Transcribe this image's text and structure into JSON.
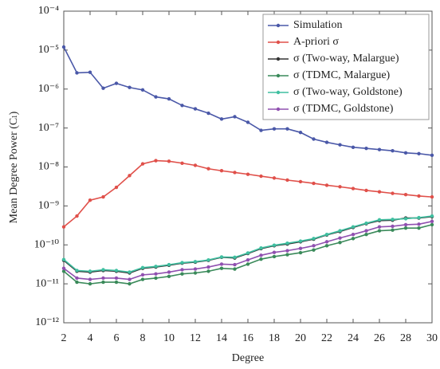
{
  "chart_data": {
    "type": "line",
    "x_label": "Degree",
    "y_label": "Mean Degree Power (Cₗ)",
    "x": [
      2,
      3,
      4,
      5,
      6,
      7,
      8,
      9,
      10,
      11,
      12,
      13,
      14,
      15,
      16,
      17,
      18,
      19,
      20,
      21,
      22,
      23,
      24,
      25,
      26,
      27,
      28,
      29,
      30
    ],
    "xlim": [
      2,
      30
    ],
    "xticks": [
      2,
      4,
      6,
      8,
      10,
      12,
      14,
      16,
      18,
      20,
      22,
      24,
      26,
      28,
      30
    ],
    "ylim": [
      1e-12,
      0.0001
    ],
    "yscale": "log",
    "yticks": [
      {
        "value": 1e-12,
        "label": "10⁻¹²"
      },
      {
        "value": 1e-11,
        "label": "10⁻¹¹"
      },
      {
        "value": 1e-10,
        "label": "10⁻¹⁰"
      },
      {
        "value": 1e-09,
        "label": "10⁻⁹"
      },
      {
        "value": 1e-08,
        "label": "10⁻⁸"
      },
      {
        "value": 1e-07,
        "label": "10⁻⁷"
      },
      {
        "value": 1e-06,
        "label": "10⁻⁶"
      },
      {
        "value": 1e-05,
        "label": "10⁻⁵"
      },
      {
        "value": 0.0001,
        "label": "10⁻⁴"
      }
    ],
    "legend": "upper right",
    "series": [
      {
        "name": "Simulation",
        "color": "#4a58a8",
        "values": [
          1.2e-05,
          2.6e-06,
          2.7e-06,
          1.05e-06,
          1.4e-06,
          1.1e-06,
          9.5e-07,
          6.3e-07,
          5.6e-07,
          3.8e-07,
          3.1e-07,
          2.4e-07,
          1.7e-07,
          1.95e-07,
          1.4e-07,
          8.7e-08,
          9.5e-08,
          9.5e-08,
          7.7e-08,
          5.2e-08,
          4.3e-08,
          3.7e-08,
          3.2e-08,
          3e-08,
          2.8e-08,
          2.6e-08,
          2.3e-08,
          2.2e-08,
          2e-08
        ]
      },
      {
        "name": "A-priori σ",
        "color": "#e0504a",
        "values": [
          2.9e-10,
          5.5e-10,
          1.4e-09,
          1.7e-09,
          3e-09,
          6e-09,
          1.2e-08,
          1.45e-08,
          1.4e-08,
          1.25e-08,
          1.1e-08,
          9e-09,
          8e-09,
          7.2e-09,
          6.5e-09,
          5.8e-09,
          5.2e-09,
          4.6e-09,
          4.2e-09,
          3.8e-09,
          3.4e-09,
          3.1e-09,
          2.8e-09,
          2.5e-09,
          2.3e-09,
          2.1e-09,
          1.95e-09,
          1.8e-09,
          1.7e-09
        ]
      },
      {
        "name": "σ (Two-way, Malargue)",
        "color": "#333333",
        "values": [
          4e-11,
          2.1e-11,
          2e-11,
          2.2e-11,
          2.1e-11,
          1.9e-11,
          2.5e-11,
          2.7e-11,
          3e-11,
          3.4e-11,
          3.6e-11,
          4e-11,
          4.8e-11,
          4.6e-11,
          6e-11,
          8e-11,
          9.5e-11,
          1.05e-10,
          1.2e-10,
          1.4e-10,
          1.8e-10,
          2.2e-10,
          2.8e-10,
          3.5e-10,
          4.2e-10,
          4.3e-10,
          4.9e-10,
          4.9e-10,
          5.3e-10
        ]
      },
      {
        "name": "σ (TDMC, Malargue)",
        "color": "#3a8a5a",
        "values": [
          2.1e-11,
          1.1e-11,
          1e-11,
          1.1e-11,
          1.1e-11,
          1e-11,
          1.3e-11,
          1.4e-11,
          1.55e-11,
          1.8e-11,
          1.9e-11,
          2.1e-11,
          2.5e-11,
          2.4e-11,
          3.2e-11,
          4.3e-11,
          5e-11,
          5.6e-11,
          6.3e-11,
          7.4e-11,
          9.5e-11,
          1.15e-10,
          1.45e-10,
          1.85e-10,
          2.3e-10,
          2.4e-10,
          2.7e-10,
          2.7e-10,
          3.3e-10
        ]
      },
      {
        "name": "σ (Two-way, Goldstone)",
        "color": "#3fbfa0",
        "values": [
          4.2e-11,
          2.2e-11,
          2.1e-11,
          2.3e-11,
          2.2e-11,
          2e-11,
          2.6e-11,
          2.8e-11,
          3.1e-11,
          3.5e-11,
          3.7e-11,
          4.1e-11,
          4.9e-11,
          4.8e-11,
          6.2e-11,
          8.3e-11,
          9.8e-11,
          1.1e-10,
          1.25e-10,
          1.45e-10,
          1.85e-10,
          2.3e-10,
          2.9e-10,
          3.6e-10,
          4.4e-10,
          4.5e-10,
          4.7e-10,
          5e-10,
          5.5e-10
        ]
      },
      {
        "name": "σ (TDMC, Goldstone)",
        "color": "#9050b0",
        "values": [
          2.5e-11,
          1.4e-11,
          1.3e-11,
          1.4e-11,
          1.4e-11,
          1.3e-11,
          1.7e-11,
          1.8e-11,
          2e-11,
          2.3e-11,
          2.4e-11,
          2.7e-11,
          3.2e-11,
          3.1e-11,
          4.1e-11,
          5.4e-11,
          6.4e-11,
          7.1e-11,
          8.1e-11,
          9.5e-11,
          1.2e-10,
          1.5e-10,
          1.85e-10,
          2.3e-10,
          2.9e-10,
          3e-10,
          3.3e-10,
          3.4e-10,
          4e-10
        ]
      }
    ]
  }
}
